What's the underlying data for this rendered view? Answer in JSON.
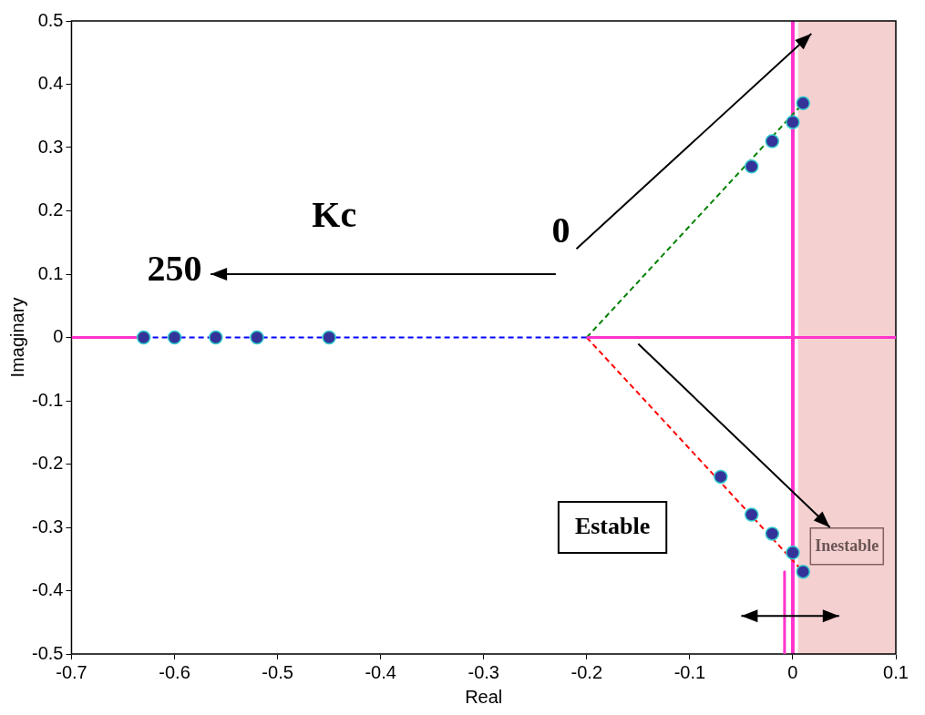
{
  "chart_data": {
    "type": "scatter",
    "xlabel": "Real",
    "ylabel": "Imaginary",
    "xlim": [
      -0.7,
      0.1
    ],
    "xticks": [
      -0.7,
      -0.6,
      -0.5,
      -0.4,
      -0.3,
      -0.2,
      -0.1,
      0,
      0.1
    ],
    "ylim": [
      -0.5,
      0.5
    ],
    "yticks": [
      -0.5,
      -0.4,
      -0.3,
      -0.2,
      -0.1,
      0,
      0.1,
      0.2,
      0.3,
      0.4,
      0.5
    ],
    "grid": false,
    "legend": false,
    "series": [
      {
        "type": "line",
        "color": "#ff33cc",
        "line_style": "solid",
        "marker": "none",
        "x": [
          -0.7,
          -0.63
        ],
        "values": [
          0,
          0
        ]
      },
      {
        "type": "line",
        "color": "#ff33cc",
        "line_style": "solid",
        "marker": "none",
        "x": [
          -0.2,
          0.1
        ],
        "values": [
          0,
          0
        ]
      },
      {
        "type": "line",
        "color": "#ff33cc",
        "line_style": "solid",
        "marker": "none",
        "x": [
          -0.008,
          -0.008
        ],
        "values": [
          -0.37,
          -0.5
        ]
      },
      {
        "type": "line",
        "color": "#0000ff",
        "line_style": "dashed",
        "marker": "none",
        "x": [
          -0.63,
          -0.2
        ],
        "values": [
          0,
          0
        ]
      },
      {
        "type": "line",
        "color": "#008000",
        "line_style": "dashed",
        "marker": "none",
        "x": [
          -0.2,
          0.01
        ],
        "values": [
          0,
          0.37
        ]
      },
      {
        "type": "line",
        "color": "#ff0000",
        "line_style": "dashed",
        "marker": "none",
        "x": [
          -0.2,
          0.01
        ],
        "values": [
          0,
          -0.37
        ]
      },
      {
        "type": "scatter",
        "color": "#333399",
        "marker": "circle",
        "x": [
          -0.63,
          -0.6,
          -0.56,
          -0.52,
          -0.45
        ],
        "values": [
          0,
          0,
          0,
          0,
          0
        ]
      },
      {
        "type": "scatter",
        "color": "#333399",
        "marker": "circle",
        "x": [
          -0.04,
          -0.02,
          0,
          0.01
        ],
        "values": [
          0.27,
          0.31,
          0.34,
          0.37
        ]
      },
      {
        "type": "scatter",
        "color": "#333399",
        "marker": "circle",
        "x": [
          -0.07,
          -0.04,
          -0.02,
          0,
          0.01
        ],
        "values": [
          -0.22,
          -0.28,
          -0.31,
          -0.34,
          -0.37
        ]
      }
    ],
    "ref_lines": [
      {
        "axis": "x",
        "value": 0,
        "color": "#ff33cc",
        "line_style": "solid"
      }
    ],
    "bands": [
      {
        "axis": "x",
        "from": 0.005,
        "to": 0.1,
        "label": "Inestable",
        "color": "#f2c4c4"
      }
    ],
    "annotations": [
      "Kc",
      "0",
      "250",
      "Estable"
    ]
  }
}
